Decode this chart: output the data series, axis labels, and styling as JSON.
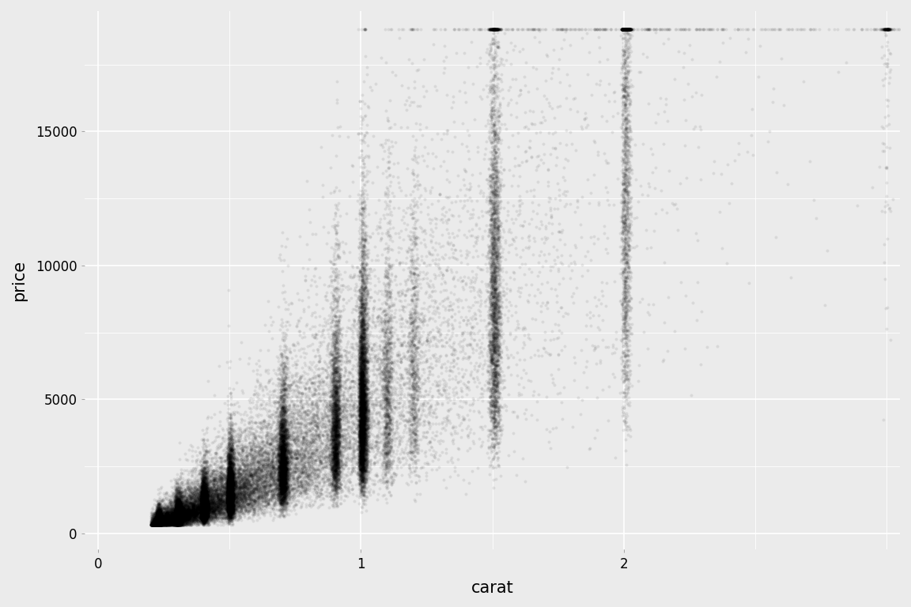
{
  "title": "",
  "xlabel": "carat",
  "ylabel": "price",
  "xlim": [
    -0.05,
    3.05
  ],
  "ylim": [
    -600,
    19500
  ],
  "xticks": [
    0,
    1,
    2
  ],
  "yticks": [
    0,
    5000,
    10000,
    15000
  ],
  "ytick_labels": [
    "0",
    "5000",
    "10000",
    "15000"
  ],
  "xtick_labels": [
    "0",
    "1",
    "2"
  ],
  "background_color": "#EBEBEB",
  "panel_bg": "#EBEBEB",
  "outer_bg": "#EBEBEB",
  "grid_color": "#FFFFFF",
  "point_color": "#000000",
  "point_alpha": 0.08,
  "point_size": 8,
  "xlabel_fontsize": 15,
  "ylabel_fontsize": 15,
  "tick_fontsize": 12
}
